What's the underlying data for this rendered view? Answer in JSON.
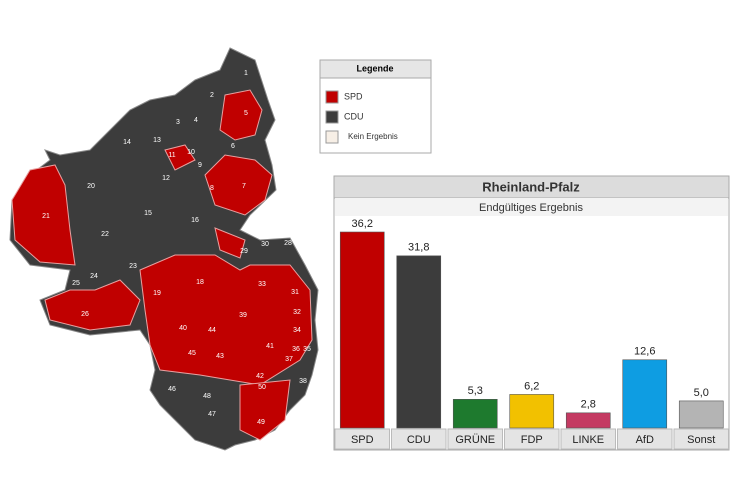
{
  "legend": {
    "title": "Legende",
    "items": [
      {
        "label": "SPD",
        "color": "#c00000"
      },
      {
        "label": "CDU",
        "color": "#3c3c3c"
      },
      {
        "label": "Kein Ergebnis",
        "color": "#f7efe6"
      }
    ]
  },
  "map": {
    "labels": [
      "1",
      "2",
      "3",
      "4",
      "5",
      "6",
      "7",
      "8",
      "9",
      "10",
      "11",
      "12",
      "13",
      "14",
      "15",
      "16",
      "18",
      "19",
      "20",
      "21",
      "22",
      "23",
      "24",
      "25",
      "26",
      "28",
      "29",
      "30",
      "31",
      "32",
      "33",
      "34",
      "35",
      "36",
      "37",
      "38",
      "39",
      "40",
      "41",
      "42",
      "43",
      "44",
      "45",
      "46",
      "47",
      "48",
      "49",
      "50"
    ]
  },
  "chart_data": {
    "type": "bar",
    "title": "Rheinland-Pfalz",
    "subtitle": "Endgültiges Ergebnis",
    "categories": [
      "SPD",
      "CDU",
      "GRÜNE",
      "FDP",
      "LINKE",
      "AfD",
      "Sonst"
    ],
    "values": [
      36.2,
      31.8,
      5.3,
      6.2,
      2.8,
      12.6,
      5.0
    ],
    "value_labels": [
      "36,2",
      "31,8",
      "5,3",
      "6,2",
      "2,8",
      "12,6",
      "5,0"
    ],
    "colors": [
      "#c00000",
      "#3c3c3c",
      "#1e7a2e",
      "#f2c100",
      "#c43a62",
      "#0e9de2",
      "#b4b4b4"
    ]
  }
}
